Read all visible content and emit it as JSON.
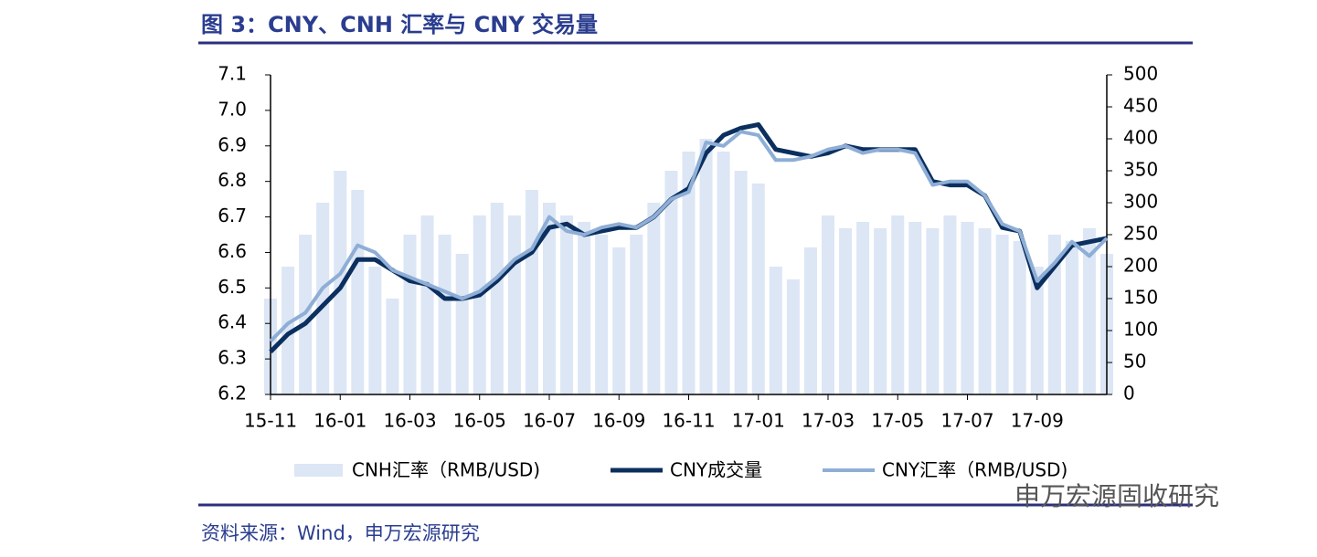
{
  "chart_data": {
    "type": "line",
    "title": "图 3：CNY、CNH 汇率与 CNY 交易量",
    "source": "资料来源：Wind，申万宏源研究",
    "watermark": "申万宏源固收研究",
    "x": [
      "15-11",
      null,
      null,
      null,
      "16-01",
      null,
      null,
      null,
      "16-03",
      null,
      null,
      null,
      "16-05",
      null,
      null,
      null,
      "16-07",
      null,
      null,
      null,
      "16-09",
      null,
      null,
      null,
      "16-11",
      null,
      null,
      null,
      "17-01",
      null,
      null,
      null,
      "17-03",
      null,
      null,
      null,
      "17-05",
      null,
      null,
      null,
      "17-07",
      null,
      null,
      null,
      "17-09",
      null,
      null,
      null,
      null
    ],
    "series": [
      {
        "name": "CNH汇率（RMB/USD)",
        "type": "bar",
        "axis": "y2",
        "color": "#dce6f5",
        "values": [
          150,
          200,
          250,
          300,
          350,
          320,
          200,
          150,
          250,
          280,
          250,
          220,
          280,
          300,
          280,
          320,
          300,
          280,
          270,
          250,
          230,
          250,
          300,
          350,
          380,
          400,
          380,
          350,
          330,
          200,
          180,
          230,
          280,
          260,
          270,
          260,
          280,
          270,
          260,
          280,
          270,
          260,
          250,
          240,
          200,
          250,
          240,
          260,
          220
        ]
      },
      {
        "name": "CNY成交量",
        "type": "line",
        "axis": "y",
        "color": "#0b2f5e",
        "values": [
          6.32,
          6.37,
          6.4,
          6.45,
          6.5,
          6.58,
          6.58,
          6.55,
          6.52,
          6.51,
          6.47,
          6.47,
          6.48,
          6.52,
          6.57,
          6.6,
          6.67,
          6.68,
          6.65,
          6.66,
          6.67,
          6.67,
          6.7,
          6.75,
          6.78,
          6.88,
          6.93,
          6.95,
          6.96,
          6.89,
          6.88,
          6.87,
          6.88,
          6.9,
          6.89,
          6.89,
          6.89,
          6.89,
          6.8,
          6.79,
          6.79,
          6.76,
          6.67,
          6.66,
          6.5,
          6.56,
          6.62,
          6.63,
          6.64
        ]
      },
      {
        "name": "CNY汇率（RMB/USD)",
        "type": "line",
        "axis": "y",
        "color": "#8eaed6",
        "values": [
          6.35,
          6.4,
          6.43,
          6.5,
          6.54,
          6.62,
          6.6,
          6.55,
          6.53,
          6.51,
          6.49,
          6.47,
          6.49,
          6.53,
          6.58,
          6.61,
          6.7,
          6.66,
          6.65,
          6.67,
          6.68,
          6.67,
          6.7,
          6.75,
          6.77,
          6.91,
          6.9,
          6.94,
          6.93,
          6.86,
          6.86,
          6.87,
          6.89,
          6.9,
          6.88,
          6.89,
          6.89,
          6.88,
          6.79,
          6.8,
          6.8,
          6.76,
          6.68,
          6.66,
          6.52,
          6.57,
          6.63,
          6.59,
          6.64
        ]
      }
    ],
    "ylim": [
      6.2,
      7.1
    ],
    "yticks": [
      6.2,
      6.3,
      6.4,
      6.5,
      6.6,
      6.7,
      6.8,
      6.9,
      {
        "value": 7,
        "label": "7.0"
      },
      7.1
    ],
    "y2lim": [
      0,
      500
    ],
    "y2ticks": [
      0,
      50,
      100,
      150,
      200,
      250,
      300,
      350,
      400,
      450,
      500
    ],
    "legend": "bottom"
  }
}
